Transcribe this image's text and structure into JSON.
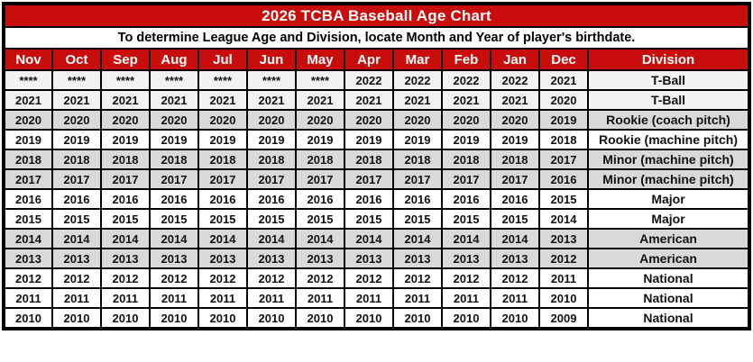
{
  "colors": {
    "header_red": "#c90c0c",
    "header_text": "#ffffff",
    "row_light_gray": "#f2f2f2",
    "row_gray": "#d9d9d9",
    "row_white": "#ffffff",
    "border_black": "#000000"
  },
  "chart_data": {
    "type": "table",
    "title": "2026 TCBA Baseball Age Chart",
    "subtitle": "To determine League Age and Division, locate Month and Year of player's birthdate.",
    "columns": [
      "Nov",
      "Oct",
      "Sep",
      "Aug",
      "Jul",
      "Jun",
      "May",
      "Apr",
      "Mar",
      "Feb",
      "Jan",
      "Dec",
      "Division"
    ],
    "rows": [
      {
        "cells": [
          "****",
          "****",
          "****",
          "****",
          "****",
          "****",
          "****",
          "2022",
          "2022",
          "2022",
          "2022",
          "2021"
        ],
        "division": "T-Ball",
        "shade": "light"
      },
      {
        "cells": [
          "2021",
          "2021",
          "2021",
          "2021",
          "2021",
          "2021",
          "2021",
          "2021",
          "2021",
          "2021",
          "2021",
          "2020"
        ],
        "division": "T-Ball",
        "shade": "light"
      },
      {
        "cells": [
          "2020",
          "2020",
          "2020",
          "2020",
          "2020",
          "2020",
          "2020",
          "2020",
          "2020",
          "2020",
          "2020",
          "2019"
        ],
        "division": "Rookie (coach pitch)",
        "shade": "gray"
      },
      {
        "cells": [
          "2019",
          "2019",
          "2019",
          "2019",
          "2019",
          "2019",
          "2019",
          "2019",
          "2019",
          "2019",
          "2019",
          "2018"
        ],
        "division": "Rookie (machine pitch)",
        "shade": "white"
      },
      {
        "cells": [
          "2018",
          "2018",
          "2018",
          "2018",
          "2018",
          "2018",
          "2018",
          "2018",
          "2018",
          "2018",
          "2018",
          "2017"
        ],
        "division": "Minor (machine pitch)",
        "shade": "gray"
      },
      {
        "cells": [
          "2017",
          "2017",
          "2017",
          "2017",
          "2017",
          "2017",
          "2017",
          "2017",
          "2017",
          "2017",
          "2017",
          "2016"
        ],
        "division": "Minor (machine pitch)",
        "shade": "gray"
      },
      {
        "cells": [
          "2016",
          "2016",
          "2016",
          "2016",
          "2016",
          "2016",
          "2016",
          "2016",
          "2016",
          "2016",
          "2016",
          "2015"
        ],
        "division": "Major",
        "shade": "white"
      },
      {
        "cells": [
          "2015",
          "2015",
          "2015",
          "2015",
          "2015",
          "2015",
          "2015",
          "2015",
          "2015",
          "2015",
          "2015",
          "2014"
        ],
        "division": "Major",
        "shade": "white"
      },
      {
        "cells": [
          "2014",
          "2014",
          "2014",
          "2014",
          "2014",
          "2014",
          "2014",
          "2014",
          "2014",
          "2014",
          "2014",
          "2013"
        ],
        "division": "American",
        "shade": "gray"
      },
      {
        "cells": [
          "2013",
          "2013",
          "2013",
          "2013",
          "2013",
          "2013",
          "2013",
          "2013",
          "2013",
          "2013",
          "2013",
          "2012"
        ],
        "division": "American",
        "shade": "gray"
      },
      {
        "cells": [
          "2012",
          "2012",
          "2012",
          "2012",
          "2012",
          "2012",
          "2012",
          "2012",
          "2012",
          "2012",
          "2012",
          "2011"
        ],
        "division": "National",
        "shade": "white"
      },
      {
        "cells": [
          "2011",
          "2011",
          "2011",
          "2011",
          "2011",
          "2011",
          "2011",
          "2011",
          "2011",
          "2011",
          "2011",
          "2010"
        ],
        "division": "National",
        "shade": "white"
      },
      {
        "cells": [
          "2010",
          "2010",
          "2010",
          "2010",
          "2010",
          "2010",
          "2010",
          "2010",
          "2010",
          "2010",
          "2010",
          "2009"
        ],
        "division": "National",
        "shade": "white"
      }
    ]
  }
}
